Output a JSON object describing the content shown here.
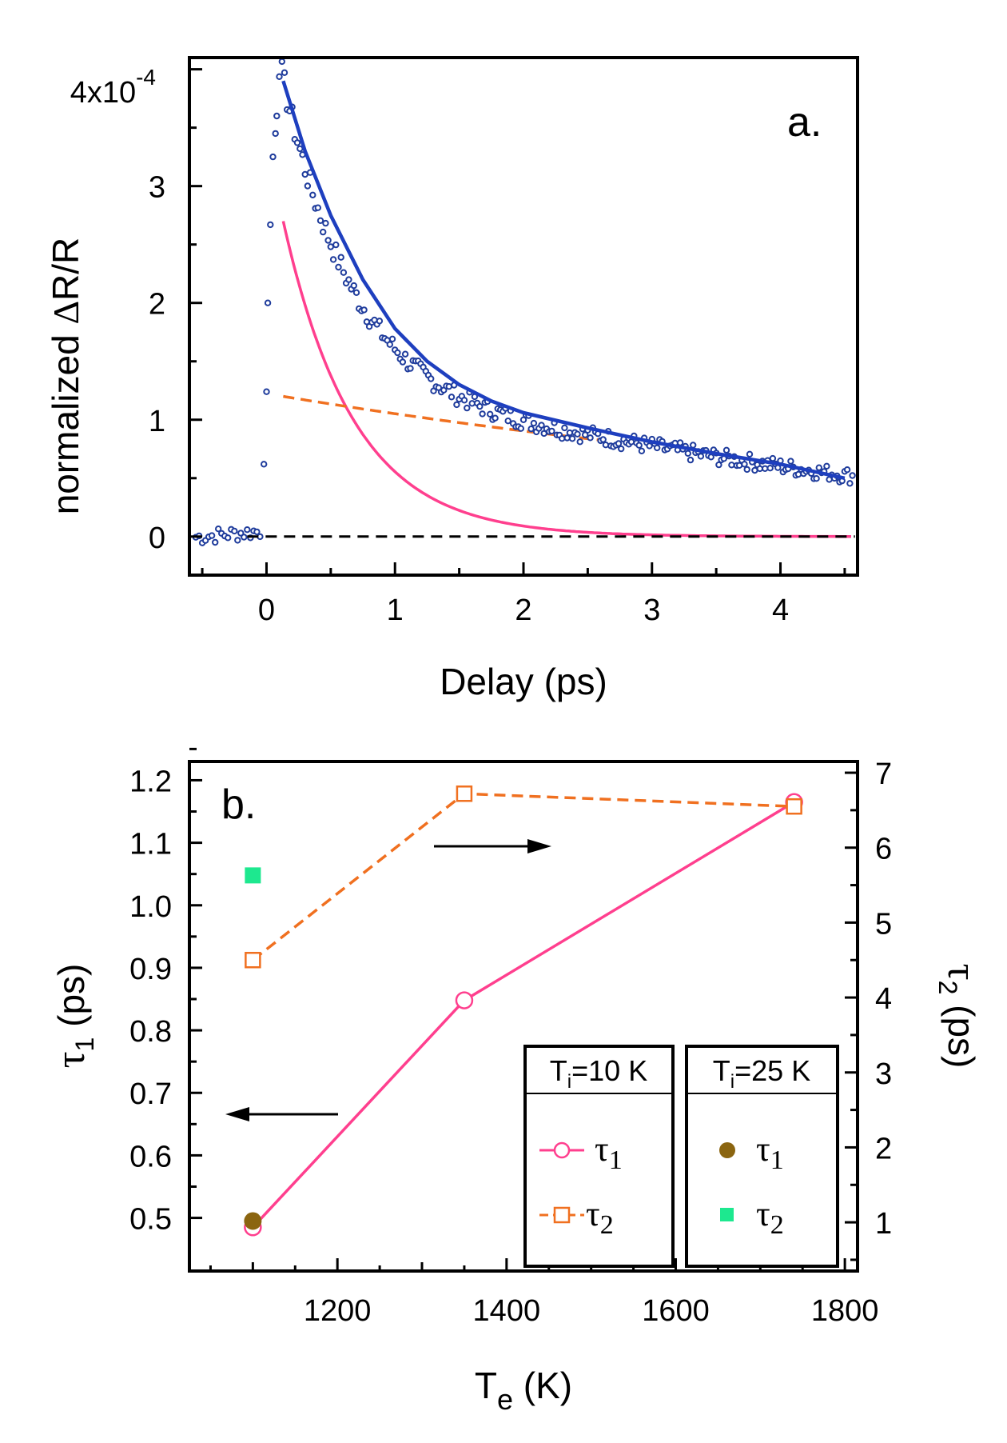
{
  "chart_data": [
    {
      "type": "scatter",
      "panel_label": "a.",
      "xlabel": "Delay (ps)",
      "ylabel": "normalized ΔR/R",
      "ylabel_parts": {
        "prefix": "normalized ",
        "delta": "Δ",
        "suffix": "R/R"
      },
      "xlim": [
        -0.6,
        4.6
      ],
      "ylim": [
        -0.33,
        4.1
      ],
      "x_ticks": [
        0,
        1,
        2,
        3,
        4
      ],
      "y_ticks": [
        0,
        1,
        2,
        3
      ],
      "y_top_tick": {
        "mantissa": "4x10",
        "exponent": "-4",
        "value": 4
      },
      "y_scale": "x10^-4",
      "zero_line": {
        "y": 0,
        "style": "dashed",
        "color": "#000000"
      },
      "series": [
        {
          "name": "data",
          "kind": "markers",
          "marker": "open-circle",
          "color": "#1f3c9c",
          "model": {
            "pre_time_zero_noise": true,
            "rise_at": 0,
            "A1": 2.7,
            "tau1": 0.55,
            "A2": 1.2,
            "tau2": 6.6,
            "noise_amplitude": 0.06,
            "x_step": 0.02
          }
        },
        {
          "name": "fit",
          "kind": "line",
          "color": "#1e3fbf",
          "points": [
            [
              0.13,
              3.9
            ],
            [
              0.3,
              3.3
            ],
            [
              0.5,
              2.75
            ],
            [
              0.75,
              2.2
            ],
            [
              1.0,
              1.78
            ],
            [
              1.25,
              1.5
            ],
            [
              1.5,
              1.3
            ],
            [
              1.75,
              1.16
            ],
            [
              2.0,
              1.06
            ],
            [
              2.5,
              0.93
            ],
            [
              3.0,
              0.81
            ],
            [
              3.5,
              0.71
            ],
            [
              4.0,
              0.62
            ],
            [
              4.5,
              0.5
            ]
          ]
        },
        {
          "name": "tau1 component",
          "kind": "line",
          "color": "#ff3f8e",
          "A": 2.7,
          "tau": 0.55,
          "x_range": [
            0.13,
            4.55
          ]
        },
        {
          "name": "tau2 component",
          "kind": "line",
          "style": "dashed",
          "color": "#f07020",
          "A": 1.2,
          "tau": 6.6,
          "x_range": [
            0.13,
            2.6
          ]
        }
      ]
    },
    {
      "type": "line",
      "panel_label": "b.",
      "xlabel": "Te (K)",
      "xlabel_parts": {
        "main": "T",
        "sub": "e",
        "unit": " (K)"
      },
      "ylabel_left": "τ1 (ps)",
      "ylabel_left_parts": {
        "sym": "τ",
        "sub": "1",
        "unit": " (ps)"
      },
      "ylabel_right": "τ2 (ps)",
      "ylabel_right_parts": {
        "sym": "τ",
        "sub": "2",
        "unit": " (ps)"
      },
      "xlim": [
        1025,
        1815
      ],
      "ylim_left": [
        0.415,
        1.23
      ],
      "ylim_right": [
        0.35,
        7.15
      ],
      "x_ticks": [
        1200,
        1400,
        1600,
        1800
      ],
      "y_ticks_left": [
        "0.5",
        "0.6",
        "0.7",
        "0.8",
        "0.9",
        "1.0",
        "1.1",
        "1.2"
      ],
      "y_ticks_right": [
        1,
        2,
        3,
        4,
        5,
        6,
        7
      ],
      "series": [
        {
          "name": "τ1",
          "group": "Ti=10 K",
          "axis": "left",
          "style": "solid",
          "marker": "open-circle",
          "color": "#ff3f8e",
          "x": [
            1100,
            1350,
            1740
          ],
          "y": [
            0.485,
            0.848,
            1.165
          ]
        },
        {
          "name": "τ2",
          "group": "Ti=10 K",
          "axis": "right",
          "style": "dashed",
          "marker": "open-square",
          "color": "#f07020",
          "x": [
            1100,
            1350,
            1740
          ],
          "y": [
            4.5,
            6.72,
            6.55
          ]
        },
        {
          "name": "τ1",
          "group": "Ti=25 K",
          "axis": "left",
          "style": "none",
          "marker": "filled-circle",
          "color": "#8b6510",
          "x": [
            1100
          ],
          "y": [
            0.495
          ]
        },
        {
          "name": "τ2",
          "group": "Ti=25 K",
          "axis": "right",
          "style": "none",
          "marker": "filled-square",
          "color": "#1de88f",
          "x": [
            1100
          ],
          "y": [
            5.63
          ]
        }
      ],
      "arrows": [
        {
          "direction": "left",
          "points_to": "left axis"
        },
        {
          "direction": "right",
          "points_to": "right axis"
        }
      ],
      "legends": [
        {
          "header": "Ti=10 K",
          "header_parts": {
            "T": "T",
            "sub": "i",
            "rest": "=10 K"
          },
          "entries": [
            {
              "sym": "τ",
              "sub": "1"
            },
            {
              "sym": "τ",
              "sub": "2"
            }
          ]
        },
        {
          "header": "Ti=25 K",
          "header_parts": {
            "T": "T",
            "sub": "i",
            "rest": "=25 K"
          },
          "entries": [
            {
              "sym": "τ",
              "sub": "1"
            },
            {
              "sym": "τ",
              "sub": "2"
            }
          ]
        }
      ]
    }
  ]
}
